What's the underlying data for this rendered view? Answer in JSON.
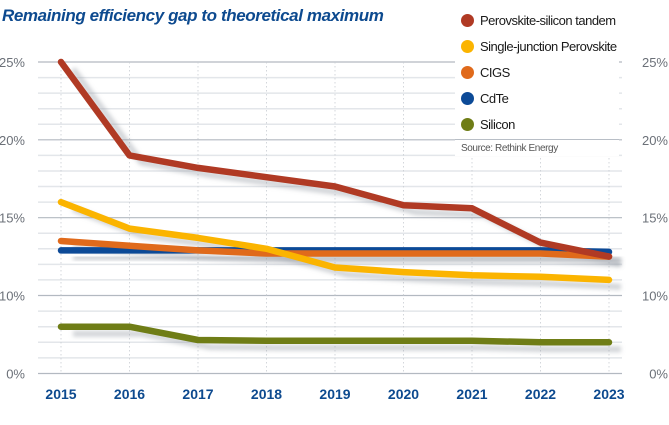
{
  "title": "Remaining efficiency gap to theoretical maximum",
  "source": "Source: Rethink Energy",
  "chart_data": {
    "type": "line",
    "title": "Remaining efficiency gap to theoretical maximum",
    "xlabel": "",
    "ylabel": "",
    "x": [
      "2015",
      "2016",
      "2017",
      "2018",
      "2019",
      "2020",
      "2021",
      "2022",
      "2023"
    ],
    "y_tick_labels": [
      "25%",
      "20%",
      "15%",
      "10%",
      "0%"
    ],
    "y_ticks": [
      25,
      20,
      15,
      10,
      0
    ],
    "axis_note": "broken y-axis: 10%-25% at 1% per minor gridline, 0%-10% compressed at 2% per minor gridline",
    "ylim": [
      0,
      25
    ],
    "grid": true,
    "legend_position": "top-right",
    "series": [
      {
        "name": "Perovskite-silicon tandem",
        "color": "#b03a24",
        "values": [
          25,
          19,
          18.2,
          17.6,
          17,
          15.8,
          15.6,
          13.4,
          12.5
        ]
      },
      {
        "name": "Single-junction Perovskite",
        "color": "#fbb400",
        "values": [
          16,
          14.3,
          13.7,
          13,
          11.8,
          11.5,
          11.3,
          11.2,
          11
        ]
      },
      {
        "name": "CIGS",
        "color": "#e06a1b",
        "values": [
          13.5,
          13.2,
          12.9,
          12.7,
          12.7,
          12.7,
          12.7,
          12.7,
          12.5
        ]
      },
      {
        "name": "CdTe",
        "color": "#0c4a97",
        "values": [
          12.9,
          12.9,
          12.9,
          12.9,
          12.9,
          12.9,
          12.9,
          12.9,
          12.8
        ]
      },
      {
        "name": "Silicon",
        "color": "#6f7d16",
        "values": [
          6,
          6,
          4.3,
          4.2,
          4.2,
          4.2,
          4.2,
          4,
          4
        ]
      }
    ]
  },
  "colors": {
    "title": "#0d4a8f",
    "year_labels": "#0d4a8f",
    "axis_labels": "#6b7078",
    "gridline_major": "#b3b9c1",
    "gridline_minor": "#e3e6ea"
  }
}
